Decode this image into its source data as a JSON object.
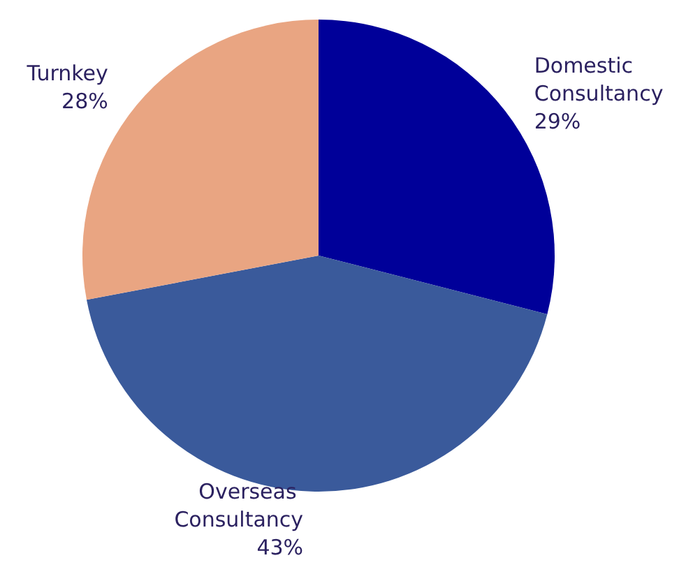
{
  "chart_data": {
    "type": "pie",
    "categories": [
      "Domestic Consultancy",
      "Overseas Consultancy",
      "Turnkey"
    ],
    "values": [
      29,
      43,
      28
    ],
    "value_labels": [
      "29%",
      "43%",
      "28%"
    ],
    "colors": [
      "#000099",
      "#3a5a9b",
      "#e9a582"
    ]
  }
}
